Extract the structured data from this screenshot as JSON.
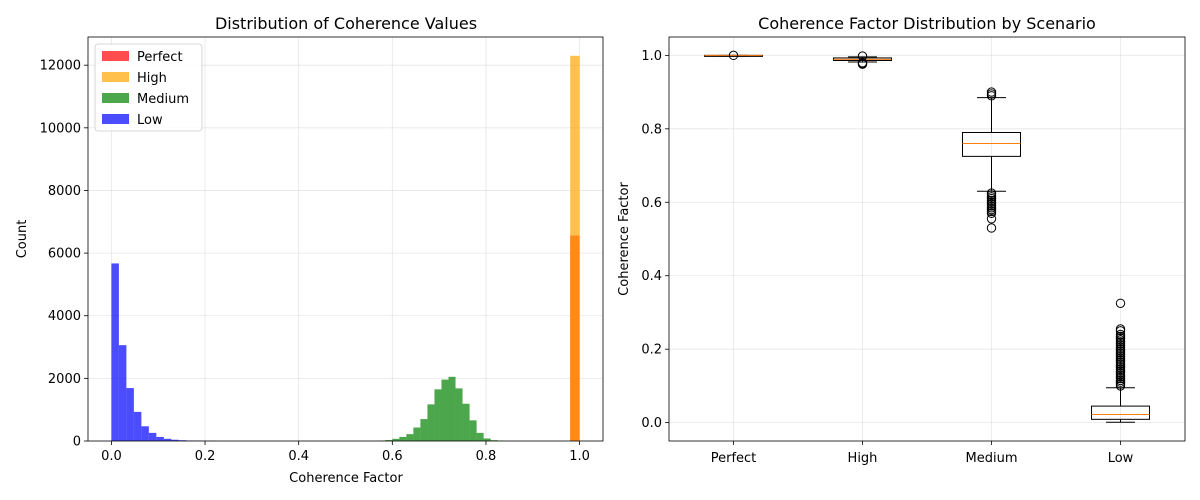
{
  "chart_data": [
    {
      "type": "bar",
      "title": "Distribution of Coherence Values",
      "xlabel": "Coherence Factor",
      "ylabel": "Count",
      "xlim": [
        -0.05,
        1.05
      ],
      "ylim": [
        0,
        12900
      ],
      "xticks": [
        0.0,
        0.2,
        0.4,
        0.6,
        0.8,
        1.0
      ],
      "xtick_labels": [
        "0.0",
        "0.2",
        "0.4",
        "0.6",
        "0.8",
        "1.0"
      ],
      "yticks": [
        0,
        2000,
        4000,
        6000,
        8000,
        10000,
        12000
      ],
      "ytick_labels": [
        "0",
        "2000",
        "4000",
        "6000",
        "8000",
        "10000",
        "12000"
      ],
      "grid": true,
      "legend_position": "top-left",
      "series": [
        {
          "name": "Perfect",
          "color": "#ff0000",
          "opacity": 0.7,
          "bins": [
            {
              "x0": 0.98,
              "x1": 1.0,
              "count": 6560
            }
          ]
        },
        {
          "name": "High",
          "color": "#ffa500",
          "opacity": 0.7,
          "bins": [
            {
              "x0": 0.98,
              "x1": 1.0,
              "count": 12300
            }
          ]
        },
        {
          "name": "Medium",
          "color": "#008000",
          "opacity": 0.7,
          "bins": [
            {
              "x0": 0.57,
              "x1": 0.585,
              "count": 10
            },
            {
              "x0": 0.585,
              "x1": 0.6,
              "count": 30
            },
            {
              "x0": 0.6,
              "x1": 0.615,
              "count": 70
            },
            {
              "x0": 0.615,
              "x1": 0.63,
              "count": 130
            },
            {
              "x0": 0.63,
              "x1": 0.645,
              "count": 220
            },
            {
              "x0": 0.645,
              "x1": 0.66,
              "count": 430
            },
            {
              "x0": 0.66,
              "x1": 0.675,
              "count": 700
            },
            {
              "x0": 0.675,
              "x1": 0.69,
              "count": 1170
            },
            {
              "x0": 0.69,
              "x1": 0.705,
              "count": 1650
            },
            {
              "x0": 0.705,
              "x1": 0.72,
              "count": 1960
            },
            {
              "x0": 0.72,
              "x1": 0.735,
              "count": 2050
            },
            {
              "x0": 0.735,
              "x1": 0.75,
              "count": 1680
            },
            {
              "x0": 0.75,
              "x1": 0.765,
              "count": 1190
            },
            {
              "x0": 0.765,
              "x1": 0.78,
              "count": 660
            },
            {
              "x0": 0.78,
              "x1": 0.795,
              "count": 260
            },
            {
              "x0": 0.795,
              "x1": 0.81,
              "count": 80
            },
            {
              "x0": 0.81,
              "x1": 0.825,
              "count": 25
            },
            {
              "x0": 0.825,
              "x1": 0.84,
              "count": 8
            }
          ]
        },
        {
          "name": "Low",
          "color": "#0000ff",
          "opacity": 0.7,
          "bins": [
            {
              "x0": 0.0,
              "x1": 0.016,
              "count": 5670
            },
            {
              "x0": 0.016,
              "x1": 0.032,
              "count": 3060
            },
            {
              "x0": 0.032,
              "x1": 0.048,
              "count": 1690
            },
            {
              "x0": 0.048,
              "x1": 0.064,
              "count": 930
            },
            {
              "x0": 0.064,
              "x1": 0.08,
              "count": 470
            },
            {
              "x0": 0.08,
              "x1": 0.096,
              "count": 260
            },
            {
              "x0": 0.096,
              "x1": 0.112,
              "count": 130
            },
            {
              "x0": 0.112,
              "x1": 0.128,
              "count": 70
            },
            {
              "x0": 0.128,
              "x1": 0.144,
              "count": 40
            },
            {
              "x0": 0.144,
              "x1": 0.16,
              "count": 25
            },
            {
              "x0": 0.16,
              "x1": 0.176,
              "count": 15
            },
            {
              "x0": 0.176,
              "x1": 0.192,
              "count": 10
            },
            {
              "x0": 0.192,
              "x1": 0.208,
              "count": 6
            },
            {
              "x0": 0.208,
              "x1": 0.224,
              "count": 4
            }
          ]
        }
      ]
    },
    {
      "type": "box",
      "title": "Coherence Factor Distribution by Scenario",
      "xlabel": "",
      "ylabel": "Coherence Factor",
      "ylim": [
        -0.05,
        1.05
      ],
      "yticks": [
        0.0,
        0.2,
        0.4,
        0.6,
        0.8,
        1.0
      ],
      "ytick_labels": [
        "0.0",
        "0.2",
        "0.4",
        "0.6",
        "0.8",
        "1.0"
      ],
      "grid": true,
      "categories": [
        "Perfect",
        "High",
        "Medium",
        "Low"
      ],
      "median_color": "#ff7f0e",
      "boxes": [
        {
          "name": "Perfect",
          "whisker_low": 0.998,
          "q1": 0.999,
          "median": 1.0,
          "q3": 1.0,
          "whisker_high": 1.0,
          "outliers": [
            1.0
          ]
        },
        {
          "name": "High",
          "whisker_low": 0.982,
          "q1": 0.986,
          "median": 0.989,
          "q3": 0.993,
          "whisker_high": 0.996,
          "outliers": [
            0.976,
            0.978,
            0.98,
            0.998
          ]
        },
        {
          "name": "Medium",
          "whisker_low": 0.63,
          "q1": 0.725,
          "median": 0.76,
          "q3": 0.79,
          "whisker_high": 0.885,
          "outliers": [
            0.53,
            0.555,
            0.57,
            0.575,
            0.58,
            0.585,
            0.59,
            0.595,
            0.6,
            0.605,
            0.61,
            0.615,
            0.62,
            0.625,
            0.89,
            0.895,
            0.9
          ]
        },
        {
          "name": "Low",
          "whisker_low": 0.001,
          "q1": 0.009,
          "median": 0.022,
          "q3": 0.045,
          "whisker_high": 0.095,
          "outliers": [
            0.1,
            0.105,
            0.11,
            0.115,
            0.12,
            0.125,
            0.13,
            0.135,
            0.14,
            0.145,
            0.15,
            0.155,
            0.16,
            0.165,
            0.17,
            0.175,
            0.18,
            0.185,
            0.19,
            0.195,
            0.2,
            0.205,
            0.21,
            0.215,
            0.22,
            0.225,
            0.23,
            0.235,
            0.24,
            0.25,
            0.255,
            0.325
          ]
        }
      ]
    }
  ]
}
